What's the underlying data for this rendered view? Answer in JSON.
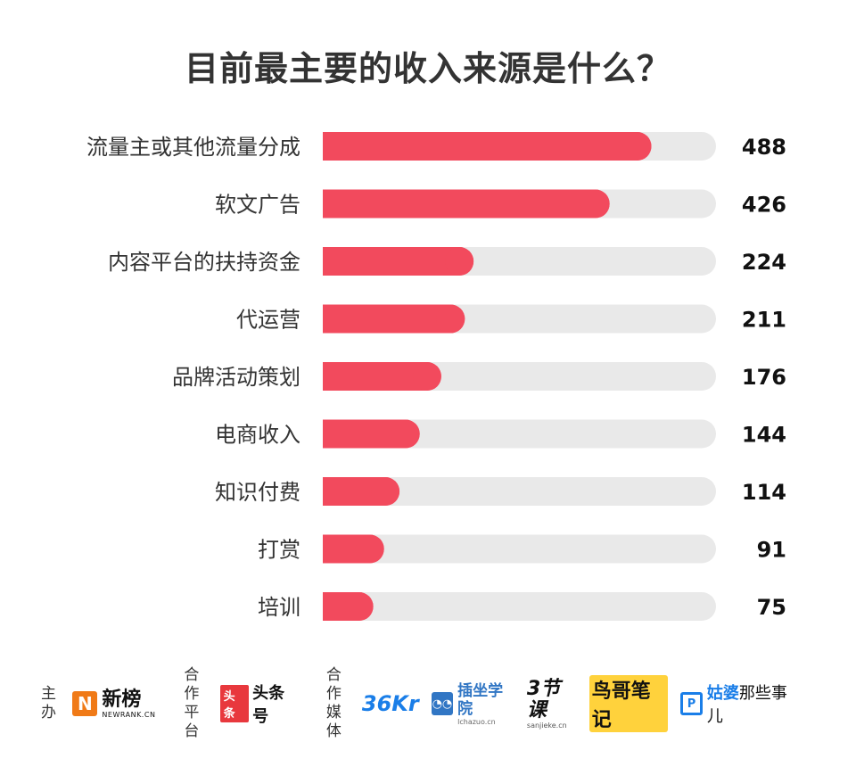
{
  "chart_data": {
    "type": "bar",
    "orientation": "horizontal",
    "title": "目前最主要的收入来源是什么？",
    "categories": [
      "流量主或其他流量分成",
      "软文广告",
      "内容平台的扶持资金",
      "代运营",
      "品牌活动策划",
      "电商收入",
      "知识付费",
      "打赏",
      "培训"
    ],
    "values": [
      488,
      426,
      224,
      211,
      176,
      144,
      114,
      91,
      75
    ],
    "data_labels": [
      "488",
      "426",
      "224",
      "211",
      "176",
      "144",
      "114",
      "91",
      "75"
    ],
    "xlim": [
      0,
      584
    ],
    "grid": false,
    "colors": {
      "bar": "#f24a5d",
      "track": "#e9e9e9",
      "label": "#333333",
      "value": "#111111"
    }
  },
  "footer": {
    "host_label": "主办",
    "host_logo": {
      "name": "新榜",
      "sub": "NEWRANK.CN",
      "icon": "N"
    },
    "partner_label_1": "合作",
    "partner_label_2": "平台",
    "partner_logo": {
      "mark": "头条",
      "name": "头条号"
    },
    "media_label_1": "合作",
    "media_label_2": "媒体",
    "media_logos": {
      "kr": "36Kr",
      "chazuo": {
        "name": "插坐学院",
        "sub": "lchazuo.cn"
      },
      "sanjieke": {
        "name": "3节课",
        "sub": "sanjieke.cn"
      },
      "niaoge": "鸟哥笔记",
      "gupo": {
        "mark": "姑婆",
        "name": "那些事儿"
      }
    }
  }
}
